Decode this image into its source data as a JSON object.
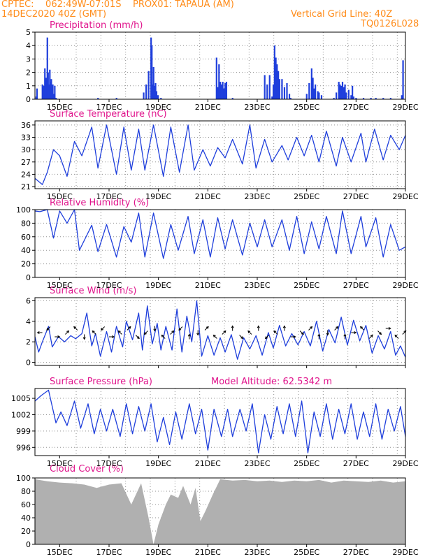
{
  "header": {
    "line1_left": "CPTEC:    062:49W-07:01S    PROX01: TAPAUA (AM)",
    "line2_left": "14DEC2020 40Z (GMT)",
    "line2_right": "Vertical Grid Line: 40Z",
    "line3_right": "TQ0126L028"
  },
  "colors": {
    "header": "#ff8c1a",
    "panel_title": "#e0148c",
    "series": "#1f3fdc",
    "cloud": "#b0b0b0",
    "axis": "#000000",
    "grid": "#909090",
    "wind_arrow": "#000000"
  },
  "x_axis": {
    "unit": "day of December 2020",
    "range": [
      14.0,
      29.0
    ],
    "tick_values": [
      15,
      17,
      19,
      21,
      23,
      25,
      27,
      29
    ],
    "tick_labels": [
      "15DEC",
      "17DEC",
      "19DEC",
      "21DEC",
      "23DEC",
      "25DEC",
      "27DEC",
      "29DEC"
    ],
    "vertical_gridlines_at": [
      15.67,
      16.67,
      17.67,
      18.67,
      19.67,
      20.67,
      21.67,
      22.67,
      23.67,
      24.67,
      25.67,
      26.67,
      27.67,
      28.67
    ]
  },
  "chart_data": [
    {
      "type": "bar",
      "title": "Precipitation (mm/h)",
      "ylim": [
        0,
        5
      ],
      "yticks": [
        0,
        1,
        2,
        3,
        4,
        5
      ],
      "grid": true,
      "series": [
        {
          "x": [
            14.05,
            14.08,
            14.3,
            14.32,
            14.36,
            14.4,
            14.45,
            14.5,
            14.53,
            14.56,
            14.6,
            14.63,
            14.66,
            14.7,
            14.72,
            14.76,
            14.8,
            14.85,
            16.55,
            17.3,
            18.4,
            18.5,
            18.6,
            18.7,
            18.73,
            18.76,
            18.8,
            18.84,
            18.88,
            18.92,
            18.98,
            19.1,
            21.35,
            21.4,
            21.45,
            21.5,
            21.55,
            21.6,
            21.65,
            21.7,
            21.75,
            22.0,
            23.3,
            23.4,
            23.5,
            23.6,
            23.65,
            23.7,
            23.75,
            23.8,
            23.85,
            23.9,
            24.0,
            24.1,
            24.2,
            24.3,
            24.35,
            25.0,
            25.1,
            25.2,
            25.25,
            25.3,
            25.35,
            25.45,
            25.5,
            25.6,
            26.1,
            26.2,
            26.3,
            26.35,
            26.4,
            26.45,
            26.5,
            26.55,
            26.6,
            26.7,
            26.8,
            26.85,
            26.9,
            27.0,
            27.3,
            27.6,
            27.8,
            28.1,
            28.4,
            28.85,
            28.9
          ],
          "values": [
            0.2,
            0.8,
            1.1,
            0.9,
            1.0,
            2.3,
            1.6,
            4.6,
            2.0,
            1.1,
            2.2,
            1.3,
            1.5,
            0.8,
            1.1,
            0.4,
            1.0,
            0.1,
            0.1,
            0.1,
            0.5,
            1.1,
            2.1,
            4.6,
            4.0,
            1.1,
            2.4,
            1.0,
            1.2,
            0.6,
            0.3,
            0.1,
            3.1,
            0.9,
            2.6,
            1.3,
            1.1,
            1.3,
            0.8,
            1.2,
            1.3,
            0.1,
            1.8,
            1.1,
            1.8,
            0.2,
            1.1,
            4.0,
            3.1,
            2.6,
            2.1,
            1.5,
            1.5,
            0.9,
            1.2,
            0.4,
            0.1,
            0.4,
            1.2,
            2.3,
            1.6,
            0.8,
            1.1,
            0.6,
            0.5,
            0.3,
            0.1,
            0.5,
            1.3,
            1.1,
            1.0,
            1.3,
            0.9,
            1.1,
            0.5,
            0.7,
            0.3,
            1.0,
            0.2,
            0.1,
            0.1,
            0.1,
            0.1,
            0.1,
            0.1,
            0.3,
            2.9
          ]
        }
      ]
    },
    {
      "type": "line",
      "title": "Surface Temperature (nC)",
      "ylim": [
        20.5,
        37
      ],
      "yticks": [
        21,
        24,
        27,
        30,
        33,
        36
      ],
      "grid": true,
      "series": [
        {
          "x": [
            14.0,
            14.3,
            14.5,
            14.75,
            15.0,
            15.3,
            15.6,
            15.9,
            16.3,
            16.55,
            16.9,
            17.3,
            17.6,
            17.9,
            18.2,
            18.45,
            18.8,
            19.2,
            19.5,
            19.85,
            20.2,
            20.45,
            20.8,
            21.1,
            21.4,
            21.7,
            22.0,
            22.4,
            22.7,
            22.95,
            23.3,
            23.6,
            24.0,
            24.25,
            24.6,
            24.9,
            25.2,
            25.5,
            25.8,
            26.2,
            26.45,
            26.8,
            27.2,
            27.4,
            27.75,
            28.1,
            28.4,
            28.75,
            29.0
          ],
          "values": [
            23.0,
            21.5,
            24.5,
            30.0,
            28.5,
            23.5,
            32.0,
            28.5,
            35.5,
            25.5,
            36.0,
            24.0,
            35.5,
            25.0,
            35.0,
            25.0,
            36.0,
            23.5,
            35.5,
            24.5,
            36.0,
            25.0,
            30.0,
            26.0,
            30.5,
            28.0,
            32.5,
            26.5,
            36.0,
            25.5,
            32.5,
            27.0,
            31.0,
            27.5,
            33.0,
            28.5,
            33.5,
            27.0,
            34.5,
            26.0,
            33.0,
            27.0,
            34.0,
            27.0,
            35.0,
            27.5,
            33.5,
            30.0,
            33.5
          ]
        }
      ]
    },
    {
      "type": "line",
      "title": "Relative Humidity (%)",
      "ylim": [
        0,
        100
      ],
      "yticks": [
        0,
        20,
        40,
        60,
        80,
        100
      ],
      "grid": true,
      "series": [
        {
          "x": [
            14.0,
            14.2,
            14.5,
            14.75,
            15.0,
            15.3,
            15.6,
            15.8,
            16.3,
            16.55,
            16.9,
            17.3,
            17.6,
            17.9,
            18.2,
            18.45,
            18.8,
            19.2,
            19.5,
            19.8,
            20.2,
            20.45,
            20.8,
            21.1,
            21.4,
            21.7,
            22.0,
            22.4,
            22.7,
            23.0,
            23.3,
            23.6,
            24.0,
            24.3,
            24.6,
            24.9,
            25.2,
            25.5,
            25.8,
            26.2,
            26.45,
            26.8,
            27.2,
            27.4,
            27.8,
            28.1,
            28.4,
            28.75,
            29.0
          ],
          "values": [
            98,
            97,
            100,
            58,
            98,
            80,
            100,
            40,
            77,
            38,
            78,
            30,
            75,
            52,
            95,
            30,
            95,
            28,
            78,
            40,
            90,
            35,
            85,
            30,
            88,
            42,
            85,
            33,
            80,
            45,
            85,
            45,
            85,
            40,
            90,
            35,
            82,
            42,
            90,
            35,
            98,
            35,
            90,
            45,
            88,
            30,
            78,
            40,
            45
          ]
        }
      ]
    },
    {
      "type": "line",
      "title": "Surface Wind (m/s)",
      "ylim": [
        -0.3,
        6.3
      ],
      "yticks": [
        0,
        2,
        4,
        6
      ],
      "grid": true,
      "series": [
        {
          "x": [
            14.0,
            14.15,
            14.3,
            14.55,
            14.7,
            14.95,
            15.2,
            15.45,
            15.65,
            15.9,
            16.1,
            16.3,
            16.45,
            16.65,
            16.9,
            17.1,
            17.3,
            17.55,
            17.7,
            17.95,
            18.2,
            18.35,
            18.55,
            18.75,
            18.95,
            19.1,
            19.3,
            19.55,
            19.75,
            19.95,
            20.15,
            20.35,
            20.55,
            20.75,
            21.0,
            21.25,
            21.5,
            21.7,
            21.95,
            22.2,
            22.45,
            22.7,
            22.95,
            23.2,
            23.45,
            23.65,
            23.9,
            24.15,
            24.4,
            24.65,
            24.9,
            25.15,
            25.4,
            25.65,
            25.9,
            26.15,
            26.4,
            26.65,
            26.9,
            27.15,
            27.4,
            27.65,
            27.9,
            28.15,
            28.4,
            28.6,
            28.8,
            29.0
          ],
          "values": [
            2.5,
            1.0,
            2.0,
            3.5,
            1.5,
            2.5,
            2.0,
            2.6,
            2.3,
            2.8,
            4.8,
            1.6,
            2.8,
            0.6,
            3.0,
            1.0,
            3.5,
            1.5,
            4.0,
            2.2,
            4.8,
            1.2,
            5.5,
            1.8,
            3.8,
            1.2,
            3.5,
            1.2,
            5.2,
            1.0,
            4.5,
            2.0,
            6.0,
            0.6,
            2.6,
            0.7,
            2.4,
            1.0,
            2.7,
            0.3,
            2.4,
            1.3,
            2.6,
            0.7,
            2.9,
            1.4,
            3.6,
            1.6,
            2.8,
            1.7,
            3.0,
            1.6,
            4.0,
            1.1,
            3.2,
            1.9,
            4.4,
            1.7,
            4.1,
            2.1,
            3.6,
            0.9,
            2.6,
            1.3,
            3.0,
            0.7,
            1.6,
            0.5
          ]
        }
      ],
      "wind_arrows": {
        "x": [
          14.2,
          14.55,
          14.9,
          15.3,
          15.65,
          16.0,
          16.4,
          16.75,
          17.1,
          17.45,
          17.8,
          18.15,
          18.5,
          18.85,
          19.2,
          19.55,
          19.9,
          20.25,
          20.6,
          20.95,
          21.3,
          21.65,
          22.0,
          22.35,
          22.7,
          23.05,
          23.4,
          23.75,
          24.1,
          24.45,
          24.8,
          25.15,
          25.5,
          25.85,
          26.2,
          26.55,
          26.9,
          27.25,
          27.6,
          27.95,
          28.3,
          28.65,
          28.95
        ],
        "to_direction_deg": [
          270,
          225,
          90,
          45,
          315,
          180,
          315,
          225,
          90,
          315,
          45,
          135,
          225,
          180,
          315,
          45,
          225,
          0,
          180,
          45,
          315,
          45,
          0,
          135,
          315,
          0,
          225,
          315,
          0,
          90,
          135,
          45,
          0,
          180,
          45,
          0,
          90,
          315,
          45,
          135,
          90,
          315,
          45
        ]
      }
    },
    {
      "type": "line",
      "title": "Surface Pressure (hPa)",
      "annotation": "Model Altitude: 62.5342 m",
      "ylim": [
        994.5,
        1006.8
      ],
      "yticks": [
        996,
        999,
        1002,
        1005
      ],
      "grid": true,
      "series": [
        {
          "x": [
            14.0,
            14.25,
            14.55,
            14.85,
            15.05,
            15.3,
            15.6,
            15.85,
            16.15,
            16.4,
            16.65,
            16.9,
            17.15,
            17.45,
            17.7,
            17.95,
            18.2,
            18.45,
            18.7,
            18.95,
            19.2,
            19.45,
            19.7,
            19.95,
            20.25,
            20.5,
            20.75,
            21.0,
            21.25,
            21.55,
            21.8,
            22.0,
            22.3,
            22.55,
            22.8,
            23.05,
            23.3,
            23.55,
            23.8,
            24.05,
            24.3,
            24.55,
            24.8,
            25.05,
            25.3,
            25.55,
            25.8,
            26.05,
            26.3,
            26.55,
            26.8,
            27.05,
            27.3,
            27.55,
            27.8,
            28.05,
            28.3,
            28.55,
            28.8,
            29.0
          ],
          "values": [
            1004.5,
            1005.5,
            1006.5,
            1000.5,
            1002.5,
            1000.0,
            1004.5,
            999.5,
            1004.0,
            998.5,
            1003.0,
            999.0,
            1003.0,
            998.0,
            1004.0,
            998.5,
            1003.5,
            999.0,
            1004.0,
            997.0,
            1001.5,
            996.5,
            1002.5,
            997.5,
            1004.0,
            998.5,
            1003.0,
            995.5,
            1003.0,
            998.0,
            1003.0,
            998.0,
            1003.0,
            999.0,
            1004.0,
            995.0,
            1002.0,
            997.5,
            1003.5,
            998.5,
            1004.0,
            998.0,
            1004.5,
            995.0,
            1002.5,
            998.0,
            1004.0,
            997.5,
            1003.0,
            998.5,
            1004.0,
            997.5,
            1002.5,
            998.0,
            1004.0,
            997.5,
            1003.0,
            999.0,
            1003.5,
            998.0
          ]
        }
      ]
    },
    {
      "type": "area",
      "title": "Cloud Cover (%)",
      "ylim": [
        0,
        100
      ],
      "yticks": [
        0,
        20,
        40,
        60,
        80,
        100
      ],
      "grid": true,
      "series": [
        {
          "x": [
            14.0,
            14.5,
            15.0,
            15.5,
            16.0,
            16.5,
            17.0,
            17.5,
            17.9,
            18.3,
            18.6,
            18.8,
            19.0,
            19.3,
            19.5,
            19.8,
            20.0,
            20.3,
            20.5,
            20.7,
            20.9,
            21.2,
            21.5,
            22.0,
            22.5,
            23.0,
            23.5,
            24.0,
            24.5,
            25.0,
            25.5,
            26.0,
            26.5,
            27.0,
            27.5,
            28.0,
            28.5,
            29.0
          ],
          "values": [
            98,
            95,
            93,
            92,
            90,
            85,
            90,
            92,
            60,
            92,
            40,
            0,
            30,
            60,
            75,
            70,
            88,
            60,
            85,
            35,
            50,
            75,
            98,
            96,
            97,
            95,
            96,
            94,
            96,
            95,
            97,
            93,
            96,
            95,
            94,
            96,
            93,
            95
          ]
        }
      ]
    }
  ]
}
